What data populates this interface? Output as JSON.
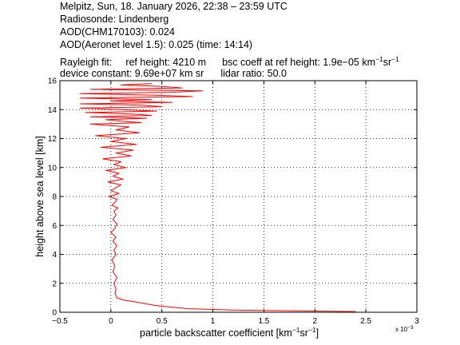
{
  "header": {
    "line1": "Melpitz, Sun, 18. January 2026, 22:38 – 23:59 UTC",
    "line2": "Radiosonde: Lindenberg",
    "line3": "AOD(CHM170103): 0.024",
    "line4": "AOD(Aeronet level 1.5): 0.025   (time: 14:14)",
    "rayleigh_label": "Rayleigh fit:",
    "ref_height": "ref height: 4210 m",
    "bsc_coeff_prefix": "bsc coeff at ref height: 1.9e−05 km",
    "bsc_exp1": "−1",
    "bsc_sr": "sr",
    "bsc_exp2": "−1",
    "device_constant": "device constant: 9.69e+07 km sr",
    "lidar_ratio": "lidar ratio: 50.0"
  },
  "axes": {
    "xlabel_prefix": "particle backscatter coefficient [km",
    "xlabel_exp1": "−1",
    "xlabel_sr": "sr",
    "xlabel_exp2": "−1",
    "xlabel_suffix": "]",
    "ylabel": "height above sea level [km]",
    "multiplier_base": "x 10",
    "multiplier_exp": "−3"
  },
  "chart_data": {
    "type": "line",
    "xlabel": "particle backscatter coefficient [km-1 sr-1]",
    "ylabel": "height above sea level [km]",
    "x_multiplier": "x 10^-3",
    "xlim": [
      -0.5,
      3
    ],
    "ylim": [
      0,
      16
    ],
    "xticks": [
      -0.5,
      0,
      0.5,
      1,
      1.5,
      2,
      2.5,
      3
    ],
    "xtick_labels": [
      "−0.5",
      "0",
      "0.5",
      "1",
      "1.5",
      "2",
      "2.5",
      "3"
    ],
    "yticks": [
      0,
      2,
      4,
      6,
      8,
      10,
      12,
      14,
      16
    ],
    "ytick_labels": [
      "0",
      "2",
      "4",
      "6",
      "8",
      "10",
      "12",
      "14",
      "16"
    ],
    "grid": true,
    "line_color": "#ff0000",
    "series": [
      {
        "x": [
          2.4,
          1.8,
          1.2,
          0.75,
          0.45,
          0.25,
          0.12,
          0.06,
          0.04,
          0.05,
          0.03,
          0.06,
          0.02,
          0.04,
          0.01,
          0.05,
          0.03,
          0.06,
          0.02,
          0.05,
          0.0,
          0.04,
          0.06,
          0.02,
          0.05,
          0.03,
          0.07,
          0.01,
          0.04,
          0.06,
          -0.02,
          0.08,
          0.0,
          0.05,
          0.1,
          -0.03,
          0.12,
          0.02,
          0.08,
          -0.05,
          0.15,
          0.03,
          0.1,
          -0.08,
          0.2,
          0.05,
          0.22,
          -0.1,
          0.25,
          0.0,
          0.15,
          -0.15,
          0.28,
          0.05,
          0.18,
          -0.2,
          0.3,
          0.1,
          -0.05,
          0.35,
          -0.2,
          0.4,
          0.2,
          -0.25,
          0.45,
          0.1,
          -0.3,
          0.5,
          0.3,
          -0.3,
          0.6,
          0.0,
          0.4,
          -0.3,
          0.8,
          0.4,
          -0.3,
          0.6,
          0.9,
          -0.2,
          0.7,
          0.5,
          0.1,
          0.4
        ],
        "y": [
          0.05,
          0.1,
          0.15,
          0.25,
          0.45,
          0.7,
          0.85,
          1.0,
          1.3,
          1.6,
          2.0,
          2.4,
          2.8,
          3.2,
          3.6,
          4.0,
          4.3,
          4.6,
          4.9,
          5.2,
          5.5,
          5.8,
          6.1,
          6.4,
          6.7,
          7.0,
          7.2,
          7.4,
          7.6,
          7.8,
          8.0,
          8.2,
          8.4,
          8.6,
          8.8,
          9.0,
          9.2,
          9.4,
          9.6,
          9.8,
          10.0,
          10.2,
          10.4,
          10.6,
          10.8,
          11.0,
          11.2,
          11.4,
          11.6,
          11.8,
          12.0,
          12.2,
          12.4,
          12.6,
          12.8,
          13.0,
          13.1,
          13.2,
          13.3,
          13.4,
          13.5,
          13.6,
          13.7,
          13.8,
          13.9,
          14.0,
          14.1,
          14.2,
          14.3,
          14.4,
          14.5,
          14.6,
          14.7,
          14.8,
          14.9,
          15.0,
          15.1,
          15.2,
          15.3,
          15.4,
          15.5,
          15.6,
          15.7,
          15.8
        ]
      }
    ]
  }
}
